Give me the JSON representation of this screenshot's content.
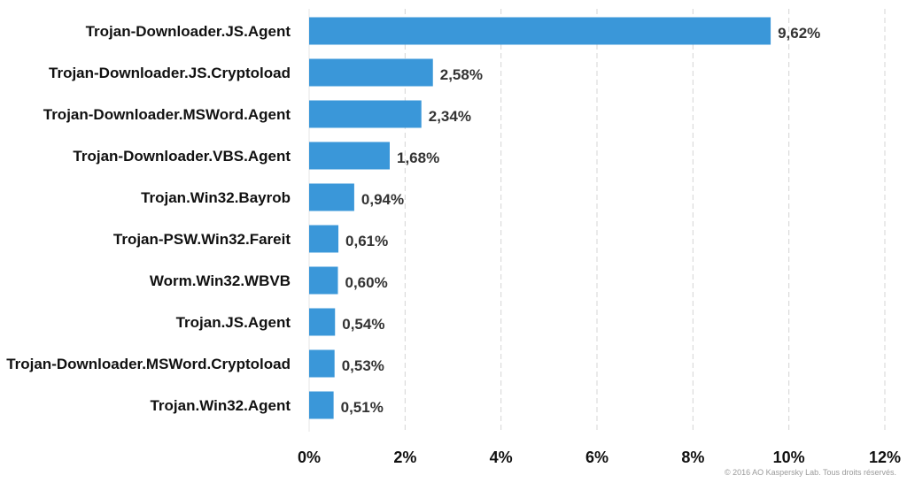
{
  "chart_data": {
    "type": "bar",
    "orientation": "horizontal",
    "categories": [
      "Trojan-Downloader.JS.Agent",
      "Trojan-Downloader.JS.Cryptoload",
      "Trojan-Downloader.MSWord.Agent",
      "Trojan-Downloader.VBS.Agent",
      "Trojan.Win32.Bayrob",
      "Trojan-PSW.Win32.Fareit",
      "Worm.Win32.WBVB",
      "Trojan.JS.Agent",
      "Trojan-Downloader.MSWord.Cryptoload",
      "Trojan.Win32.Agent"
    ],
    "values": [
      9.62,
      2.58,
      2.34,
      1.68,
      0.94,
      0.61,
      0.6,
      0.54,
      0.53,
      0.51
    ],
    "value_labels": [
      "9,62%",
      "2,58%",
      "2,34%",
      "1,68%",
      "0,94%",
      "0,61%",
      "0,60%",
      "0,54%",
      "0,53%",
      "0,51%"
    ],
    "xlim": [
      0,
      12
    ],
    "xticks": [
      0,
      2,
      4,
      6,
      8,
      10,
      12
    ],
    "xtick_labels": [
      "0%",
      "2%",
      "4%",
      "6%",
      "8%",
      "10%",
      "12%"
    ],
    "grid": "vertical dashed",
    "bar_color": "#3a97d9",
    "title": "",
    "xlabel": "",
    "ylabel": ""
  },
  "copyright": "© 2016 AO Kaspersky Lab. Tous droits réservés."
}
